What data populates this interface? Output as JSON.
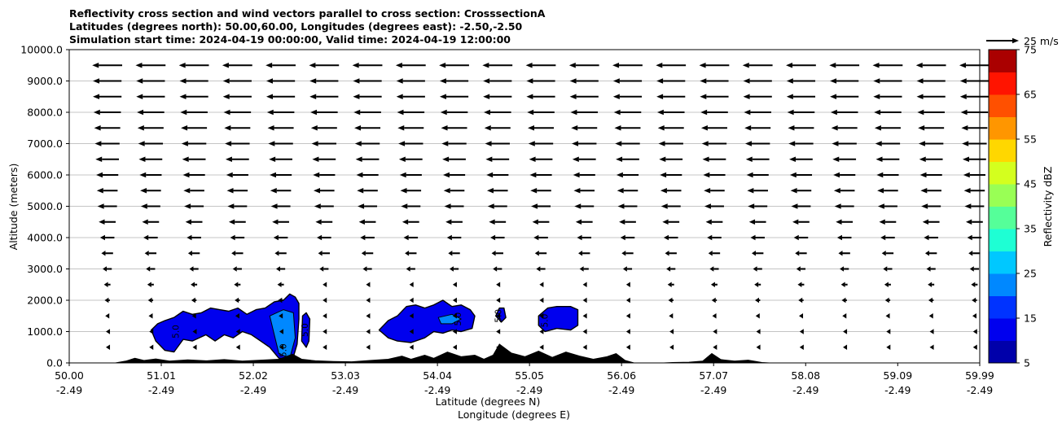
{
  "chart_data": {
    "type": "contour",
    "title_lines": [
      "Reflectivity cross section and wind vectors parallel to cross section: CrosssectionA",
      "Latitudes (degrees north): 50.00,60.00, Longitudes (degrees east): -2.50,-2.50",
      "Simulation start time: 2024-04-19 00:00:00, Valid time: 2024-04-19 12:00:00"
    ],
    "xlabel": "Latitude (degrees N)",
    "xlabel2": "Longitude (degrees E)",
    "ylabel": "Altitude (meters)",
    "xlim": [
      50.0,
      59.99
    ],
    "ylim": [
      0,
      10000
    ],
    "x_ticks": [
      {
        "lat": 50.0,
        "lat_label": "50.00",
        "lon_label": "-2.49"
      },
      {
        "lat": 51.01,
        "lat_label": "51.01",
        "lon_label": "-2.49"
      },
      {
        "lat": 52.02,
        "lat_label": "52.02",
        "lon_label": "-2.49"
      },
      {
        "lat": 53.03,
        "lat_label": "53.03",
        "lon_label": "-2.49"
      },
      {
        "lat": 54.04,
        "lat_label": "54.04",
        "lon_label": "-2.49"
      },
      {
        "lat": 55.05,
        "lat_label": "55.05",
        "lon_label": "-2.49"
      },
      {
        "lat": 56.06,
        "lat_label": "56.06",
        "lon_label": "-2.49"
      },
      {
        "lat": 57.07,
        "lat_label": "57.07",
        "lon_label": "-2.49"
      },
      {
        "lat": 58.08,
        "lat_label": "58.08",
        "lon_label": "-2.49"
      },
      {
        "lat": 59.09,
        "lat_label": "59.09",
        "lon_label": "-2.49"
      },
      {
        "lat": 59.99,
        "lat_label": "59.99",
        "lon_label": "-2.49"
      }
    ],
    "y_ticks": [
      {
        "value": 0,
        "label": "0.0"
      },
      {
        "value": 1000,
        "label": "1000.0"
      },
      {
        "value": 2000,
        "label": "2000.0"
      },
      {
        "value": 3000,
        "label": "3000.0"
      },
      {
        "value": 4000,
        "label": "4000.0"
      },
      {
        "value": 5000,
        "label": "5000.0"
      },
      {
        "value": 6000,
        "label": "6000.0"
      },
      {
        "value": 7000,
        "label": "7000.0"
      },
      {
        "value": 8000,
        "label": "8000.0"
      },
      {
        "value": 9000,
        "label": "9000.0"
      },
      {
        "value": 10000,
        "label": "10000.0"
      }
    ],
    "grid": "horizontal",
    "colorbar": {
      "label": "Reflectivity dBZ",
      "levels": [
        5,
        10,
        15,
        20,
        25,
        30,
        35,
        40,
        45,
        50,
        55,
        60,
        65,
        70,
        75
      ],
      "tick_values": [
        5,
        15,
        25,
        35,
        45,
        55,
        65,
        75
      ],
      "tick_labels": [
        "5",
        "15",
        "25",
        "35",
        "45",
        "55",
        "65",
        "75"
      ],
      "colors": [
        "#0000aa",
        "#0000ee",
        "#0033ff",
        "#0088ff",
        "#00c8ff",
        "#1effd4",
        "#55ff99",
        "#99ff55",
        "#d4ff1e",
        "#ffd700",
        "#ff9600",
        "#ff5000",
        "#ff1400",
        "#aa0000"
      ]
    },
    "wind_key": {
      "label": "25 m/s",
      "speed": 25
    },
    "wind_rows": [
      {
        "altitude": 500,
        "u": -2
      },
      {
        "altitude": 1000,
        "u": -2
      },
      {
        "altitude": 1500,
        "u": -3
      },
      {
        "altitude": 2000,
        "u": -4
      },
      {
        "altitude": 2500,
        "u": -5
      },
      {
        "altitude": 3000,
        "u": -7
      },
      {
        "altitude": 3500,
        "u": -9
      },
      {
        "altitude": 4000,
        "u": -11
      },
      {
        "altitude": 4500,
        "u": -13
      },
      {
        "altitude": 5000,
        "u": -15
      },
      {
        "altitude": 5500,
        "u": -16
      },
      {
        "altitude": 6000,
        "u": -17
      },
      {
        "altitude": 6500,
        "u": -18
      },
      {
        "altitude": 7000,
        "u": -19
      },
      {
        "altitude": 7500,
        "u": -20
      },
      {
        "altitude": 8000,
        "u": -21
      },
      {
        "altitude": 8500,
        "u": -22
      },
      {
        "altitude": 9000,
        "u": -22
      },
      {
        "altitude": 9500,
        "u": -23
      }
    ],
    "terrain": [
      [
        50.0,
        0
      ],
      [
        50.5,
        0
      ],
      [
        50.62,
        60
      ],
      [
        50.72,
        150
      ],
      [
        50.82,
        80
      ],
      [
        50.95,
        130
      ],
      [
        51.1,
        60
      ],
      [
        51.3,
        100
      ],
      [
        51.5,
        70
      ],
      [
        51.7,
        110
      ],
      [
        51.9,
        60
      ],
      [
        52.1,
        90
      ],
      [
        52.3,
        120
      ],
      [
        52.45,
        280
      ],
      [
        52.55,
        120
      ],
      [
        52.7,
        70
      ],
      [
        52.9,
        50
      ],
      [
        53.1,
        40
      ],
      [
        53.3,
        80
      ],
      [
        53.5,
        120
      ],
      [
        53.65,
        220
      ],
      [
        53.75,
        120
      ],
      [
        53.9,
        250
      ],
      [
        54.0,
        150
      ],
      [
        54.15,
        350
      ],
      [
        54.3,
        200
      ],
      [
        54.45,
        250
      ],
      [
        54.55,
        120
      ],
      [
        54.65,
        250
      ],
      [
        54.72,
        600
      ],
      [
        54.85,
        320
      ],
      [
        55.0,
        200
      ],
      [
        55.15,
        380
      ],
      [
        55.3,
        180
      ],
      [
        55.45,
        350
      ],
      [
        55.6,
        220
      ],
      [
        55.75,
        120
      ],
      [
        55.9,
        200
      ],
      [
        56.0,
        300
      ],
      [
        56.1,
        80
      ],
      [
        56.2,
        0
      ],
      [
        56.5,
        0
      ],
      [
        56.62,
        15
      ],
      [
        56.8,
        25
      ],
      [
        56.95,
        60
      ],
      [
        57.05,
        300
      ],
      [
        57.15,
        110
      ],
      [
        57.3,
        60
      ],
      [
        57.45,
        90
      ],
      [
        57.6,
        15
      ],
      [
        57.7,
        0
      ],
      [
        59.99,
        0
      ]
    ],
    "cells": [
      {
        "name": "cell-west",
        "outline": [
          [
            50.9,
            1050
          ],
          [
            50.97,
            1250
          ],
          [
            51.05,
            1350
          ],
          [
            51.15,
            1450
          ],
          [
            51.25,
            1650
          ],
          [
            51.35,
            1550
          ],
          [
            51.45,
            1600
          ],
          [
            51.55,
            1750
          ],
          [
            51.65,
            1700
          ],
          [
            51.75,
            1650
          ],
          [
            51.85,
            1750
          ],
          [
            51.95,
            1550
          ],
          [
            52.05,
            1700
          ],
          [
            52.15,
            1750
          ],
          [
            52.25,
            1950
          ],
          [
            52.35,
            2000
          ],
          [
            52.42,
            2200
          ],
          [
            52.48,
            2100
          ],
          [
            52.52,
            1900
          ],
          [
            52.52,
            1400
          ],
          [
            52.5,
            600
          ],
          [
            52.45,
            100
          ],
          [
            52.3,
            150
          ],
          [
            52.2,
            500
          ],
          [
            52.1,
            700
          ],
          [
            52.0,
            900
          ],
          [
            51.9,
            1000
          ],
          [
            51.8,
            800
          ],
          [
            51.7,
            900
          ],
          [
            51.6,
            700
          ],
          [
            51.5,
            900
          ],
          [
            51.35,
            700
          ],
          [
            51.25,
            750
          ],
          [
            51.15,
            350
          ],
          [
            51.05,
            400
          ],
          [
            50.95,
            700
          ]
        ],
        "inner": [
          [
            52.2,
            1500
          ],
          [
            52.35,
            1700
          ],
          [
            52.46,
            1600
          ],
          [
            52.48,
            800
          ],
          [
            52.42,
            150
          ],
          [
            52.3,
            300
          ],
          [
            52.25,
            900
          ]
        ],
        "labels": [
          {
            "lat": 51.2,
            "alt": 1000,
            "text": "5.0"
          },
          {
            "lat": 52.38,
            "alt": 400,
            "text": "5.0"
          }
        ]
      },
      {
        "name": "cell-small-a",
        "outline": [
          [
            52.55,
            700
          ],
          [
            52.56,
            1500
          ],
          [
            52.6,
            1600
          ],
          [
            52.64,
            1400
          ],
          [
            52.63,
            700
          ],
          [
            52.6,
            500
          ]
        ],
        "inner": null,
        "labels": [
          {
            "lat": 52.62,
            "alt": 1050,
            "text": "5.0"
          }
        ]
      },
      {
        "name": "cell-central",
        "outline": [
          [
            53.4,
            1050
          ],
          [
            53.5,
            1350
          ],
          [
            53.6,
            1500
          ],
          [
            53.7,
            1800
          ],
          [
            53.8,
            1850
          ],
          [
            53.9,
            1750
          ],
          [
            54.0,
            1850
          ],
          [
            54.1,
            2000
          ],
          [
            54.2,
            1800
          ],
          [
            54.3,
            1850
          ],
          [
            54.4,
            1700
          ],
          [
            54.45,
            1500
          ],
          [
            54.42,
            1100
          ],
          [
            54.3,
            1000
          ],
          [
            54.2,
            1050
          ],
          [
            54.1,
            950
          ],
          [
            54.0,
            1000
          ],
          [
            53.9,
            800
          ],
          [
            53.75,
            650
          ],
          [
            53.6,
            700
          ],
          [
            53.5,
            800
          ]
        ],
        "inner": [
          [
            54.05,
            1450
          ],
          [
            54.2,
            1550
          ],
          [
            54.3,
            1400
          ],
          [
            54.2,
            1250
          ],
          [
            54.08,
            1250
          ]
        ],
        "labels": [
          {
            "lat": 54.3,
            "alt": 1400,
            "text": "5.0"
          }
        ]
      },
      {
        "name": "cell-small-b",
        "outline": [
          [
            54.68,
            1500
          ],
          [
            54.72,
            1750
          ],
          [
            54.77,
            1750
          ],
          [
            54.79,
            1450
          ],
          [
            54.74,
            1300
          ]
        ],
        "inner": null,
        "labels": [
          {
            "lat": 54.74,
            "alt": 1500,
            "text": "5.0"
          }
        ]
      },
      {
        "name": "cell-east",
        "outline": [
          [
            55.15,
            1500
          ],
          [
            55.25,
            1750
          ],
          [
            55.35,
            1800
          ],
          [
            55.5,
            1800
          ],
          [
            55.58,
            1700
          ],
          [
            55.58,
            1200
          ],
          [
            55.5,
            1050
          ],
          [
            55.35,
            1100
          ],
          [
            55.22,
            1000
          ],
          [
            55.15,
            1200
          ]
        ],
        "inner": null,
        "labels": [
          {
            "lat": 55.25,
            "alt": 1350,
            "text": "5.0"
          }
        ]
      }
    ]
  }
}
